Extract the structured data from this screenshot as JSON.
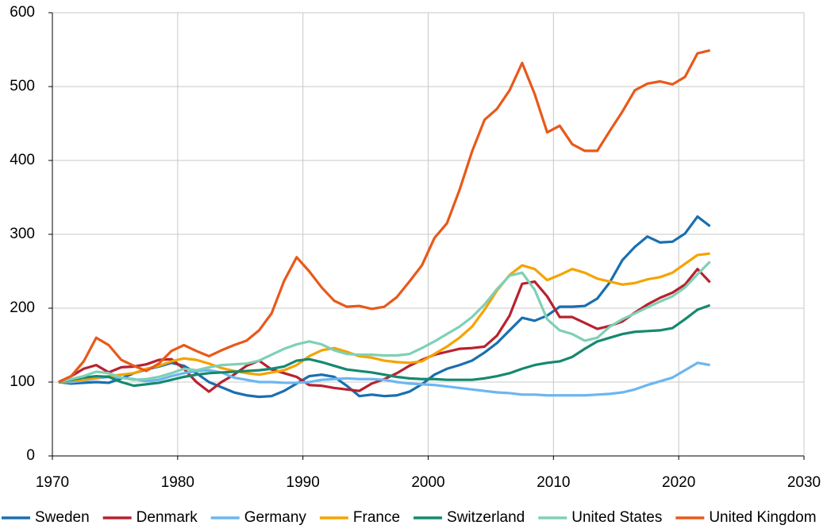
{
  "chart_data": {
    "type": "line",
    "x": [
      1970.5,
      1971.5,
      1972.5,
      1973.5,
      1974.5,
      1975.5,
      1976.5,
      1977.5,
      1978.5,
      1979.5,
      1980.5,
      1981.5,
      1982.5,
      1983.5,
      1984.5,
      1985.5,
      1986.5,
      1987.5,
      1988.5,
      1989.5,
      1990.5,
      1991.5,
      1992.5,
      1993.5,
      1994.5,
      1995.5,
      1996.5,
      1997.5,
      1998.5,
      1999.5,
      2000.5,
      2001.5,
      2002.5,
      2003.5,
      2004.5,
      2005.5,
      2006.5,
      2007.5,
      2008.5,
      2009.5,
      2010.5,
      2011.5,
      2012.5,
      2013.5,
      2014.5,
      2015.5,
      2016.5,
      2017.5,
      2018.5,
      2019.5,
      2020.5,
      2021.5,
      2022.5
    ],
    "series": [
      {
        "name": "Sweden",
        "color": "#1a6faf",
        "values": [
          100,
          98,
          99,
          100,
          99,
          105,
          112,
          117,
          121,
          126,
          122,
          112,
          100,
          93,
          86,
          82,
          80,
          81,
          88,
          98,
          108,
          110,
          107,
          95,
          81,
          83,
          81,
          82,
          87,
          97,
          110,
          118,
          123,
          129,
          140,
          153,
          170,
          187,
          183,
          190,
          202,
          202,
          203,
          213,
          235,
          265,
          283,
          297,
          289,
          290,
          301,
          324,
          311
        ]
      },
      {
        "name": "Denmark",
        "color": "#b7222f",
        "values": [
          100,
          108,
          118,
          123,
          113,
          120,
          121,
          124,
          130,
          131,
          118,
          100,
          87,
          100,
          110,
          122,
          129,
          117,
          112,
          107,
          96,
          95,
          92,
          90,
          88,
          98,
          104,
          112,
          122,
          130,
          137,
          141,
          145,
          146,
          148,
          163,
          190,
          233,
          236,
          216,
          188,
          188,
          180,
          172,
          176,
          182,
          194,
          205,
          214,
          221,
          232,
          253,
          235
        ]
      },
      {
        "name": "Germany",
        "color": "#6cb6f0",
        "values": [
          100,
          100,
          102,
          105,
          107,
          106,
          104,
          101,
          103,
          108,
          112,
          115,
          116,
          113,
          106,
          103,
          100,
          100,
          99,
          99,
          100,
          103,
          104,
          105,
          104,
          104,
          103,
          100,
          98,
          97,
          96,
          94,
          92,
          90,
          88,
          86,
          85,
          83,
          83,
          82,
          82,
          82,
          82,
          83,
          84,
          86,
          90,
          96,
          101,
          106,
          116,
          126,
          123
        ]
      },
      {
        "name": "France",
        "color": "#f5a300",
        "values": [
          100,
          102,
          103,
          106,
          108,
          110,
          112,
          118,
          122,
          128,
          132,
          130,
          125,
          119,
          115,
          112,
          110,
          113,
          116,
          123,
          135,
          143,
          146,
          141,
          135,
          133,
          129,
          127,
          126,
          128,
          138,
          148,
          160,
          175,
          198,
          224,
          245,
          258,
          253,
          238,
          245,
          253,
          248,
          240,
          236,
          232,
          234,
          239,
          242,
          248,
          260,
          272,
          274
        ]
      },
      {
        "name": "Switzerland",
        "color": "#15896f",
        "values": [
          100,
          103,
          106,
          108,
          107,
          100,
          95,
          97,
          99,
          103,
          107,
          110,
          112,
          113,
          114,
          115,
          116,
          118,
          121,
          129,
          131,
          127,
          122,
          117,
          115,
          113,
          110,
          107,
          105,
          104,
          104,
          103,
          103,
          103,
          105,
          108,
          112,
          118,
          123,
          126,
          128,
          134,
          145,
          155,
          160,
          165,
          168,
          169,
          170,
          173,
          185,
          198,
          204
        ]
      },
      {
        "name": "United States",
        "color": "#7fd0b5",
        "values": [
          100,
          104,
          108,
          114,
          112,
          106,
          103,
          104,
          107,
          112,
          118,
          116,
          120,
          123,
          124,
          125,
          129,
          137,
          145,
          151,
          155,
          151,
          143,
          138,
          137,
          137,
          136,
          136,
          138,
          146,
          155,
          165,
          175,
          188,
          205,
          226,
          244,
          248,
          225,
          185,
          170,
          165,
          156,
          160,
          175,
          185,
          193,
          201,
          209,
          216,
          228,
          246,
          263
        ]
      },
      {
        "name": "United Kingdom",
        "color": "#e8591a",
        "values": [
          100,
          108,
          128,
          160,
          150,
          130,
          122,
          115,
          125,
          142,
          150,
          142,
          135,
          143,
          150,
          156,
          170,
          193,
          237,
          269,
          250,
          228,
          210,
          202,
          203,
          199,
          202,
          215,
          236,
          258,
          295,
          315,
          360,
          412,
          455,
          470,
          495,
          532,
          490,
          438,
          447,
          422,
          413,
          413,
          440,
          466,
          495,
          504,
          507,
          503,
          513,
          545,
          549
        ]
      }
    ],
    "xlim": [
      1970,
      2030
    ],
    "xticks": [
      1970,
      1980,
      1990,
      2000,
      2010,
      2020,
      2030
    ],
    "ylim": [
      0,
      600
    ],
    "yticks": [
      0,
      100,
      200,
      300,
      400,
      500,
      600
    ],
    "grid": true,
    "legend": "bottom"
  }
}
